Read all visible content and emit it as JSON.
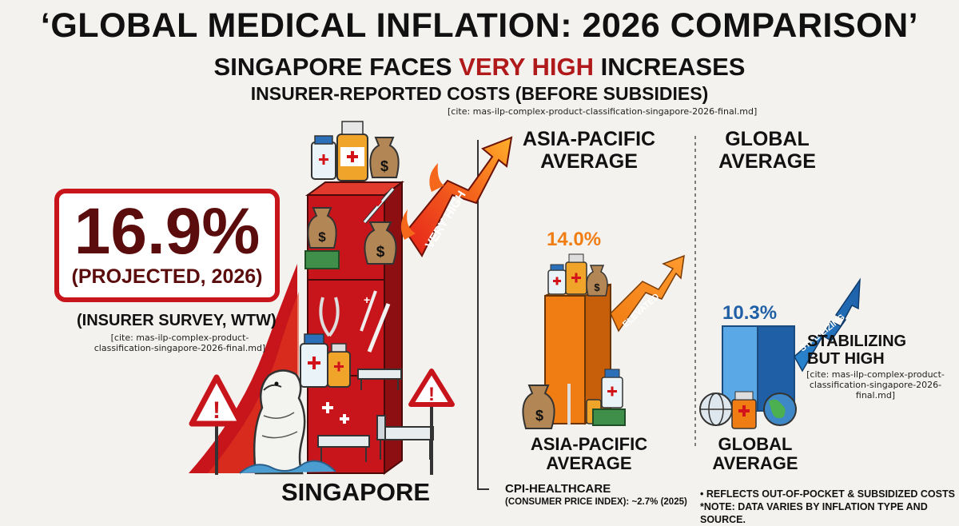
{
  "header": {
    "title": "‘GLOBAL MEDICAL INFLATION: 2026 COMPARISON’",
    "subtitle_pre": "SINGAPORE FACES ",
    "subtitle_hot": "VERY HIGH",
    "subtitle_post": " INCREASES",
    "subtitle2": "INSURER-REPORTED COSTS (BEFORE SUBSIDIES)",
    "cite": "[cite: mas-ilp-complex-product-classification-singapore-2026-final.md]"
  },
  "singapore": {
    "value_text": "16.9%",
    "projected": "(PROJECTED, 2026)",
    "survey": "(INSURER SURVEY, WTW)",
    "cite": "[cite: mas-ilp-complex-product-classification-singapore-2026-final.md]",
    "arrow_label": "VERY HIGH",
    "label": "SINGAPORE"
  },
  "apac": {
    "heading_top": "ASIA-PACIFIC\nAVERAGE",
    "value_text": "14.0%",
    "arrow_label": "ELEVATED",
    "heading_bottom": "ASIA-PACIFIC\nAVERAGE"
  },
  "global": {
    "heading_top": "GLOBAL\nAVERAGE",
    "value_text": "10.3%",
    "arrow_label": "STABILIZING",
    "note": "STABILIZING\nBUT HIGH",
    "cite": "[cite: mas-ilp-complex-product-classification-singapore-2026-final.md]",
    "heading_bottom": "GLOBAL\nAVERAGE"
  },
  "footer": {
    "cpi_title": "CPI-HEALTHCARE",
    "cpi_detail": "(CONSUMER PRICE INDEX): ~2.7% (2025)",
    "note1": "• REFLECTS OUT-OF-POCKET & SUBSIDIZED COSTS",
    "note2": "*NOTE: DATA VARIES BY INFLATION TYPE AND SOURCE."
  },
  "colors": {
    "singapore": "#c8151b",
    "apac": "#f07d14",
    "global": "#2a86cf",
    "accent_text": "#b01a1a"
  },
  "icons": [
    "warning-icon",
    "merlion-icon",
    "money-bag-icon",
    "medicine-bottle-icon",
    "syringe-icon",
    "hospital-bed-icon",
    "globe-icon",
    "trend-arrow-icon"
  ],
  "chart_data": {
    "type": "bar",
    "categories": [
      "SINGAPORE",
      "ASIA-PACIFIC AVERAGE",
      "GLOBAL AVERAGE"
    ],
    "values": [
      16.9,
      14.0,
      10.3
    ],
    "value_labels": [
      "16.9%",
      "14.0%",
      "10.3%"
    ],
    "annotations": [
      "VERY HIGH",
      "ELEVATED",
      "STABILIZING"
    ]
  }
}
